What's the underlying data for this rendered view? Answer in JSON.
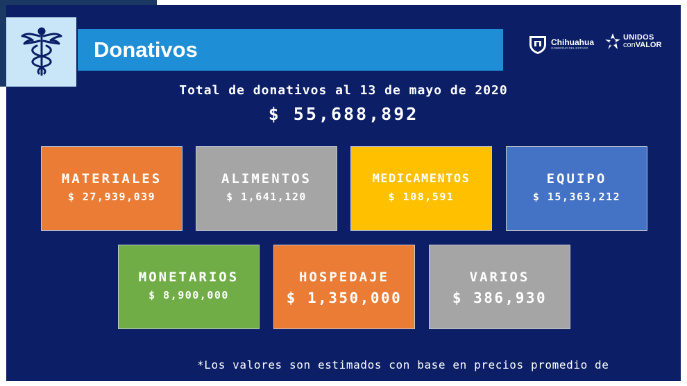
{
  "header": {
    "title": "Donativos",
    "logos": {
      "chihuahua": {
        "name": "Chihuahua",
        "subtitle": "GOBIERNO DEL ESTADO"
      },
      "unidos": {
        "line1": "UNIDOS",
        "line2_light": "con",
        "line2_bold": "VALOR"
      }
    }
  },
  "summary": {
    "heading": "Total de donativos al 13 de mayo de 2020",
    "total": "$ 55,688,892"
  },
  "categories": [
    {
      "label": "MATERIALES",
      "value": "$ 27,939,039",
      "color": "#ea7c35"
    },
    {
      "label": "ALIMENTOS",
      "value": "$ 1,641,120",
      "color": "#a5a5a5"
    },
    {
      "label": "MEDICAMENTOS",
      "value": "$ 108,591",
      "color": "#ffc000"
    },
    {
      "label": "EQUIPO",
      "value": "$ 15,363,212",
      "color": "#4472c4"
    },
    {
      "label": "MONETARIOS",
      "value": "$ 8,900,000",
      "color": "#70ad47"
    },
    {
      "label": "HOSPEDAJE",
      "value": "$ 1,350,000",
      "color": "#ea7c35"
    },
    {
      "label": "VARIOS",
      "value": "$ 386,930",
      "color": "#a5a5a5"
    }
  ],
  "footnote": "*Los valores son estimados con base en precios promedio de",
  "colors": {
    "background": "#0b1e66",
    "banner": "#1e8fd6",
    "icon_tile": "#c8e6f8",
    "icon": "#0b1e66"
  },
  "icons": {
    "main": "caduceus-icon"
  }
}
